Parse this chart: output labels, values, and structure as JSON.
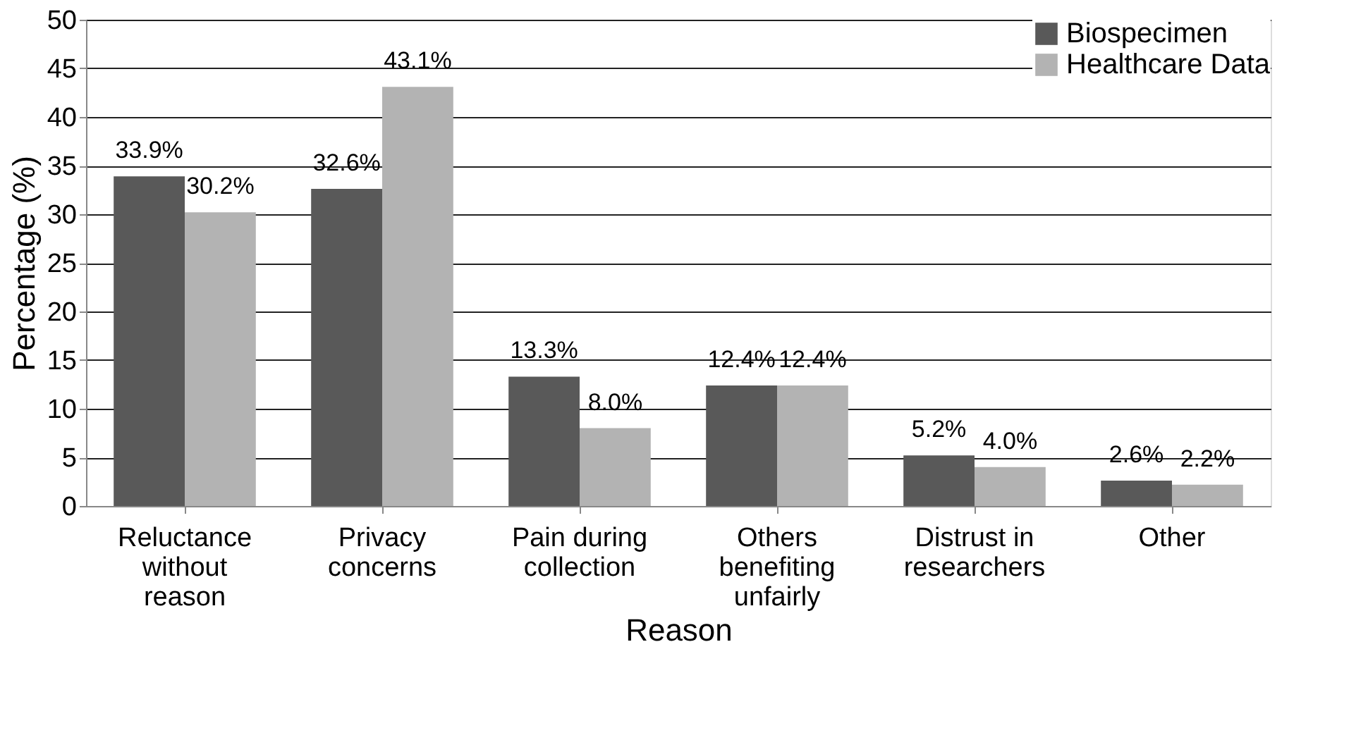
{
  "chart_data": {
    "type": "bar",
    "xlabel": "Reason",
    "ylabel": "Percentage (%)",
    "categories": [
      "Reluctance\nwithout\nreason",
      "Privacy\nconcerns",
      "Pain during\ncollection",
      "Others\nbenefiting\nunfairly",
      "Distrust in\nresearchers",
      "Other"
    ],
    "series": [
      {
        "name": "Biospecimen",
        "color": "#595959",
        "values": [
          33.9,
          32.6,
          13.3,
          12.4,
          5.2,
          2.6
        ],
        "value_labels": [
          "33.9%",
          "32.6%",
          "13.3%",
          "12.4%",
          "5.2%",
          "2.6%"
        ]
      },
      {
        "name": "Healthcare Data",
        "color": "#b3b3b3",
        "values": [
          30.2,
          43.1,
          8.0,
          12.4,
          4.0,
          2.2
        ],
        "value_labels": [
          "30.2%",
          "43.1%",
          "8.0%",
          "12.4%",
          "4.0%",
          "2.2%"
        ]
      }
    ],
    "ylim": [
      0,
      50
    ],
    "yticks": [
      0,
      5,
      10,
      15,
      20,
      25,
      30,
      35,
      40,
      45,
      50
    ],
    "grid": "y",
    "legend": "top right"
  }
}
